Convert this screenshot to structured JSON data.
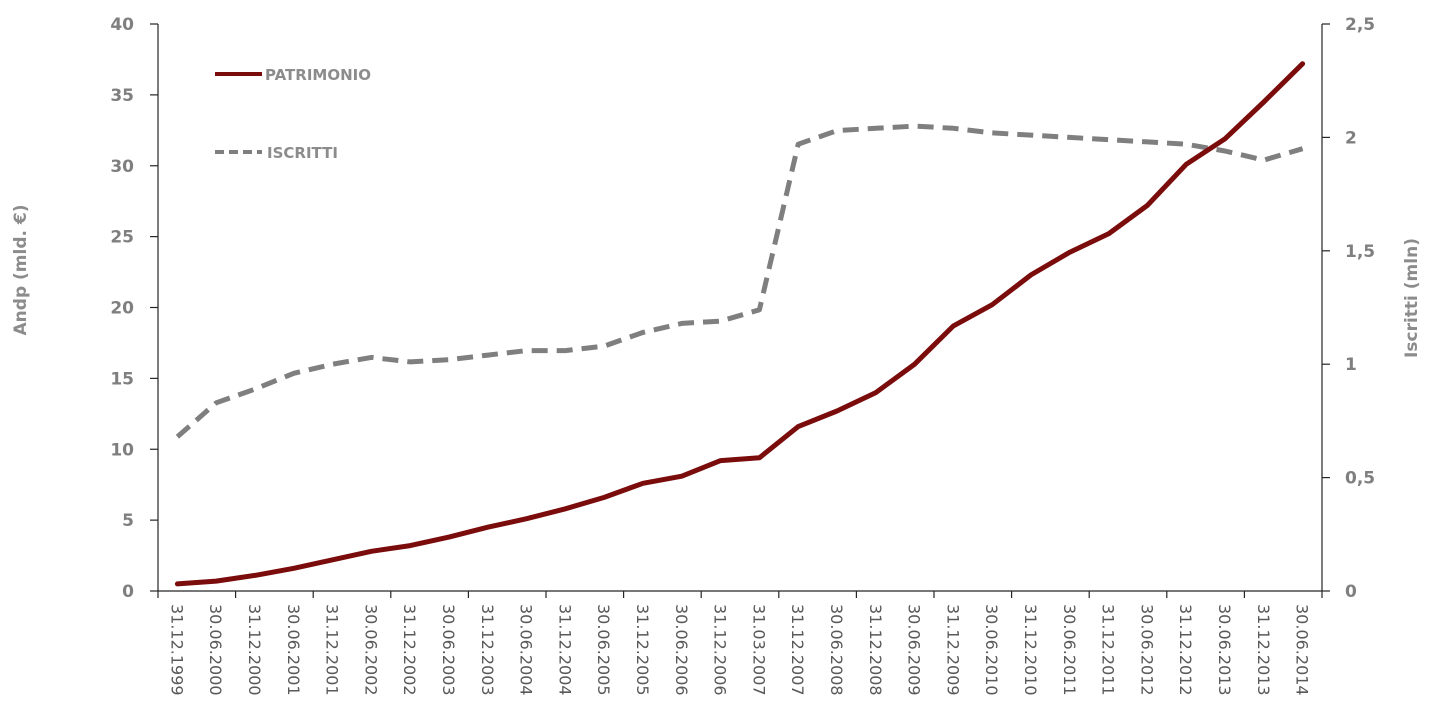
{
  "chart_data": {
    "type": "line",
    "x": [
      "31.12.1999",
      "30.06.2000",
      "31.12.2000",
      "30.06.2001",
      "31.12.2001",
      "30.06.2002",
      "31.12.2002",
      "30.06.2003",
      "31.12.2003",
      "30.06.2004",
      "31.12.2004",
      "30.06.2005",
      "31.12.2005",
      "30.06.2006",
      "31.12.2006",
      "31.03.2007",
      "31.12.2007",
      "30.06.2008",
      "31.12.2008",
      "30.06.2009",
      "31.12.2009",
      "30.06.2010",
      "31.12.2010",
      "30.06.2011",
      "31.12.2011",
      "30.06.2012",
      "31.12.2012",
      "30.06.2013",
      "31.12.2013",
      "30.06.2014"
    ],
    "series": [
      {
        "name": "PATRIMONIO",
        "axis": "left",
        "color": "#7b0c0c",
        "style": "solid",
        "values": [
          0.5,
          0.7,
          1.1,
          1.6,
          2.2,
          2.8,
          3.2,
          3.8,
          4.5,
          5.1,
          5.8,
          6.6,
          7.6,
          8.1,
          9.2,
          9.4,
          11.6,
          12.7,
          14.0,
          16.0,
          18.7,
          20.2,
          22.3,
          23.9,
          25.2,
          27.2,
          30.1,
          31.9,
          34.5,
          37.2
        ]
      },
      {
        "name": "ISCRITTI",
        "axis": "right",
        "color": "#7f7f7f",
        "style": "dashed",
        "values": [
          0.68,
          0.83,
          0.89,
          0.96,
          1.0,
          1.03,
          1.01,
          1.02,
          1.04,
          1.06,
          1.06,
          1.08,
          1.14,
          1.18,
          1.19,
          1.24,
          1.97,
          2.03,
          2.04,
          2.05,
          2.04,
          2.02,
          2.01,
          2.0,
          1.99,
          1.98,
          1.97,
          1.94,
          1.9,
          1.95
        ]
      }
    ],
    "y_left": {
      "label": "Andp (mld. €)",
      "lim": [
        0,
        40
      ],
      "ticks": [
        0,
        5,
        10,
        15,
        20,
        25,
        30,
        35,
        40
      ],
      "tick_labels": [
        "0",
        "5",
        "10",
        "15",
        "20",
        "25",
        "30",
        "35",
        "40"
      ]
    },
    "y_right": {
      "label": "Iscritti (mln)",
      "lim": [
        0,
        2.5
      ],
      "ticks": [
        0,
        0.5,
        1,
        1.5,
        2,
        2.5
      ],
      "tick_labels": [
        "0",
        "0,5",
        "1",
        "1,5",
        "2",
        "2,5"
      ]
    },
    "legend_position": "top-left",
    "grid": false
  }
}
